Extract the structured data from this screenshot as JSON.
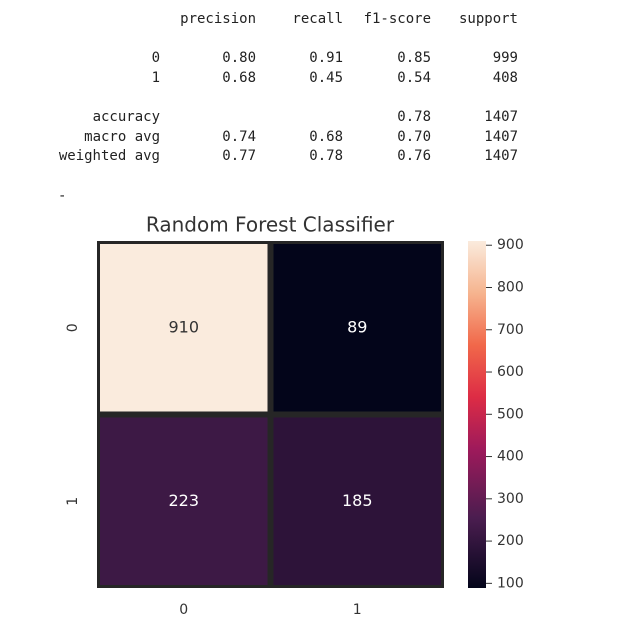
{
  "report": {
    "header": [
      "precision",
      "recall",
      "f1-score",
      "support"
    ],
    "rows": [
      {
        "label": "0",
        "cells": [
          "0.80",
          "0.91",
          "0.85",
          "999"
        ]
      },
      {
        "label": "1",
        "cells": [
          "0.68",
          "0.45",
          "0.54",
          "408"
        ]
      },
      {
        "label": "accuracy",
        "cells": [
          null,
          null,
          "0.78",
          "1407"
        ]
      },
      {
        "label": "macro avg",
        "cells": [
          "0.74",
          "0.68",
          "0.70",
          "1407"
        ]
      },
      {
        "label": "weighted avg",
        "cells": [
          "0.77",
          "0.78",
          "0.76",
          "1407"
        ]
      }
    ],
    "separator": "-"
  },
  "chart_data": {
    "type": "heatmap",
    "title": "Random Forest Classifier",
    "x_categories": [
      "0",
      "1"
    ],
    "y_categories": [
      "0",
      "1"
    ],
    "values": [
      [
        910,
        89
      ],
      [
        223,
        185
      ]
    ],
    "clim": [
      89,
      910
    ],
    "cticks": [
      100,
      200,
      300,
      400,
      500,
      600,
      700,
      800,
      900
    ],
    "colorscale": [
      [
        0,
        "#03051a"
      ],
      [
        0.2,
        "#4a1d4f"
      ],
      [
        0.4,
        "#9e1a5b"
      ],
      [
        0.55,
        "#dd2c45"
      ],
      [
        0.7,
        "#f1684a"
      ],
      [
        0.85,
        "#f6b48f"
      ],
      [
        1,
        "#faebdd"
      ]
    ]
  }
}
